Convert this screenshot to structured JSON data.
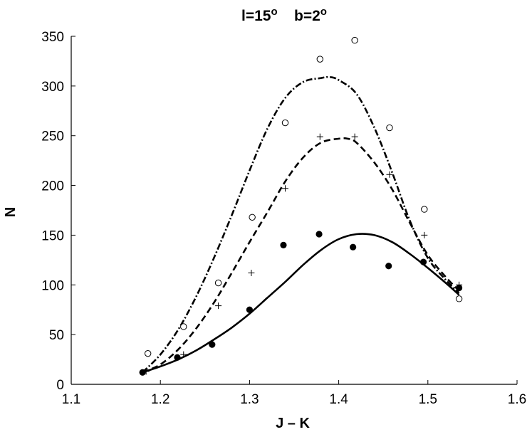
{
  "chart_data": {
    "type": "scatter",
    "title": "l=15o   b=2o",
    "title_parts": {
      "l_label": "l=15",
      "l_sup": "o",
      "b_label": "b=2",
      "b_sup": "o"
    },
    "xlabel": "J – K",
    "ylabel": "N",
    "xlim": [
      1.1,
      1.6
    ],
    "ylim": [
      0,
      350
    ],
    "xticks": [
      "1.1",
      "1.2",
      "1.3",
      "1.4",
      "1.5",
      "1.6"
    ],
    "yticks": [
      "0",
      "50",
      "100",
      "150",
      "200",
      "250",
      "300",
      "350"
    ],
    "grid": false,
    "legend": "none",
    "series": [
      {
        "marker": "open-circle",
        "line_style": "dash-dot",
        "x": [
          1.186,
          1.226,
          1.265,
          1.303,
          1.34,
          1.379,
          1.418,
          1.457,
          1.496,
          1.535
        ],
        "y": [
          31,
          58,
          102,
          168,
          263,
          327,
          346,
          258,
          176,
          86
        ],
        "fit_x": [
          1.18,
          1.2,
          1.22,
          1.24,
          1.26,
          1.28,
          1.3,
          1.32,
          1.34,
          1.36,
          1.38,
          1.39,
          1.4,
          1.42,
          1.44,
          1.46,
          1.48,
          1.5,
          1.52,
          1.535
        ],
        "fit_y": [
          12,
          30,
          55,
          88,
          127,
          170,
          215,
          257,
          288,
          304,
          308,
          309,
          306,
          292,
          258,
          213,
          164,
          127,
          105,
          92
        ]
      },
      {
        "marker": "plus",
        "line_style": "dashed",
        "x": [
          1.184,
          1.226,
          1.265,
          1.302,
          1.34,
          1.379,
          1.418,
          1.457,
          1.496,
          1.535
        ],
        "y": [
          13,
          30,
          79,
          112,
          197,
          249,
          249,
          211,
          150,
          100
        ],
        "fit_x": [
          1.18,
          1.2,
          1.22,
          1.24,
          1.26,
          1.28,
          1.3,
          1.32,
          1.34,
          1.36,
          1.38,
          1.4,
          1.41,
          1.42,
          1.44,
          1.46,
          1.48,
          1.5,
          1.52,
          1.535
        ],
        "fit_y": [
          12,
          20,
          35,
          56,
          82,
          112,
          143,
          173,
          204,
          228,
          243,
          247,
          247,
          243,
          223,
          196,
          162,
          130,
          108,
          94
        ]
      },
      {
        "marker": "filled-circle",
        "line_style": "solid",
        "x": [
          1.18,
          1.219,
          1.258,
          1.3,
          1.338,
          1.378,
          1.416,
          1.456,
          1.495,
          1.535
        ],
        "y": [
          12,
          27,
          40,
          75,
          140,
          151,
          138,
          119,
          123,
          97
        ],
        "fit_x": [
          1.18,
          1.2,
          1.22,
          1.24,
          1.26,
          1.28,
          1.3,
          1.32,
          1.34,
          1.36,
          1.38,
          1.4,
          1.42,
          1.44,
          1.46,
          1.48,
          1.5,
          1.52,
          1.535
        ],
        "fit_y": [
          12,
          18,
          25,
          34,
          45,
          57,
          71,
          87,
          103,
          120,
          135,
          146,
          151,
          150,
          143,
          131,
          117,
          102,
          90
        ]
      }
    ]
  }
}
